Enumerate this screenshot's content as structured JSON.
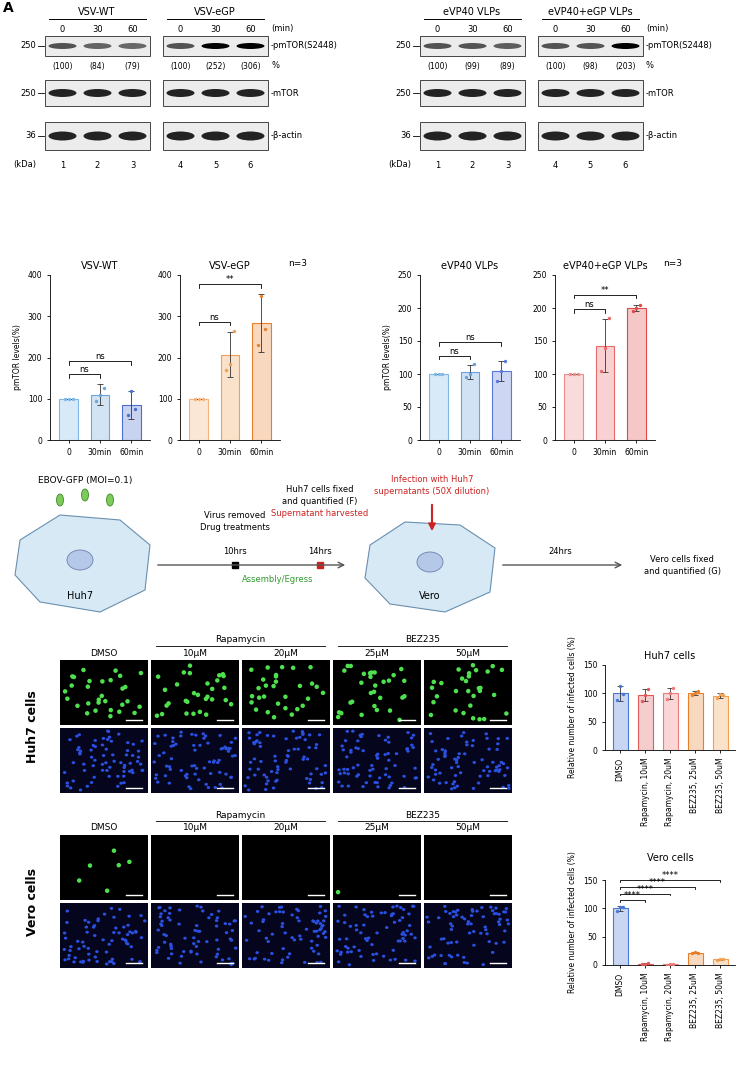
{
  "chart_data": [
    {
      "type": "bar",
      "title": "VSV-WT",
      "categories": [
        "0",
        "30min",
        "60min"
      ],
      "values": [
        100,
        110,
        85
      ],
      "errors": [
        0,
        25,
        35
      ],
      "points": [
        [
          100,
          100,
          100
        ],
        [
          95,
          110,
          125
        ],
        [
          60,
          120,
          75
        ]
      ],
      "colors": [
        "#7fb8e6",
        "#6aa6d9",
        "#4a6fd0"
      ],
      "ylabel": "pmTOR levels(%)",
      "ylim": [
        0,
        400
      ],
      "yticks": [
        0,
        100,
        200,
        300,
        400
      ],
      "significance": [
        {
          "pair": [
            0,
            1
          ],
          "label": "ns"
        },
        {
          "pair": [
            0,
            2
          ],
          "label": "ns"
        }
      ]
    },
    {
      "type": "bar",
      "title": "VSV-eGP",
      "categories": [
        "0",
        "30min",
        "60min"
      ],
      "values": [
        100,
        207,
        283
      ],
      "errors": [
        0,
        55,
        70
      ],
      "points": [
        [
          100,
          100,
          100
        ],
        [
          170,
          185,
          265
        ],
        [
          230,
          350,
          270
        ]
      ],
      "colors": [
        "#f2b27a",
        "#f0a050",
        "#e8802a"
      ],
      "annotation": "n=3",
      "ylim": [
        0,
        400
      ],
      "yticks": [
        0,
        100,
        200,
        300,
        400
      ],
      "significance": [
        {
          "pair": [
            0,
            1
          ],
          "label": "ns"
        },
        {
          "pair": [
            0,
            2
          ],
          "label": "**"
        }
      ]
    },
    {
      "type": "bar",
      "title": "eVP40 VLPs",
      "categories": [
        "0",
        "30min",
        "60min"
      ],
      "values": [
        100,
        103,
        105
      ],
      "errors": [
        0,
        10,
        15
      ],
      "points": [
        [
          100,
          100,
          100
        ],
        [
          95,
          100,
          115
        ],
        [
          90,
          105,
          120
        ]
      ],
      "colors": [
        "#7fb8e6",
        "#6a9fe0",
        "#5a78d8"
      ],
      "ylabel": "pmTOR levels(%)",
      "ylim": [
        0,
        250
      ],
      "yticks": [
        0,
        50,
        100,
        150,
        200,
        250
      ],
      "significance": [
        {
          "pair": [
            0,
            1
          ],
          "label": "ns"
        },
        {
          "pair": [
            0,
            2
          ],
          "label": "ns"
        }
      ]
    },
    {
      "type": "bar",
      "title": "eVP40+eGP VLPs",
      "categories": [
        "0",
        "30min",
        "60min"
      ],
      "values": [
        100,
        143,
        200
      ],
      "errors": [
        0,
        40,
        5
      ],
      "points": [
        [
          100,
          100,
          100
        ],
        [
          105,
          140,
          185
        ],
        [
          195,
          200,
          205
        ]
      ],
      "colors": [
        "#f08a8a",
        "#e86a6a",
        "#e04848"
      ],
      "annotation": "n=3",
      "ylim": [
        0,
        250
      ],
      "yticks": [
        0,
        50,
        100,
        150,
        200,
        250
      ],
      "significance": [
        {
          "pair": [
            0,
            1
          ],
          "label": "ns"
        },
        {
          "pair": [
            0,
            2
          ],
          "label": "**"
        }
      ]
    },
    {
      "type": "bar",
      "title": "Huh7 cells",
      "categories": [
        "DMSO",
        "Rapamycin, 10uM",
        "Rapamycin, 20uM",
        "BEZ235, 25uM",
        "BEZ235, 50uM"
      ],
      "values": [
        100,
        97,
        100,
        101,
        96
      ],
      "errors": [
        13,
        10,
        10,
        4,
        4
      ],
      "points": [
        [
          88,
          113,
          99
        ],
        [
          87,
          97,
          107
        ],
        [
          90,
          100,
          110
        ],
        [
          97,
          101,
          105
        ],
        [
          92,
          99,
          97
        ]
      ],
      "colors": [
        "#4a78d8",
        "#e05a5a",
        "#f07a7a",
        "#e8802a",
        "#f0a050"
      ],
      "ylabel": "Relative number of infected cells (%)",
      "ylim": [
        0,
        150
      ],
      "yticks": [
        0,
        50,
        100,
        150
      ],
      "significance": []
    },
    {
      "type": "bar",
      "title": "Vero cells",
      "categories": [
        "DMSO",
        "Rapamycin, 10uM",
        "Rapamycin, 20uM",
        "BEZ235, 25uM",
        "BEZ235, 50uM"
      ],
      "values": [
        100,
        2,
        1,
        22,
        10
      ],
      "errors": [
        5,
        1,
        1,
        1,
        1
      ],
      "points": [
        [
          95,
          103,
          102
        ],
        [
          1,
          2,
          3
        ],
        [
          0,
          1,
          2
        ],
        [
          21,
          23,
          22
        ],
        [
          9,
          11,
          10
        ]
      ],
      "colors": [
        "#4a78d8",
        "#e05a5a",
        "#f07a7a",
        "#e8802a",
        "#f0a050"
      ],
      "ylabel": "Relative number of infected cells (%)",
      "ylim": [
        0,
        150
      ],
      "yticks": [
        0,
        50,
        100,
        150
      ],
      "significance": [
        {
          "pair": [
            0,
            1
          ],
          "label": "****"
        },
        {
          "pair": [
            0,
            2
          ],
          "label": "****"
        },
        {
          "pair": [
            0,
            3
          ],
          "label": "****"
        },
        {
          "pair": [
            0,
            4
          ],
          "label": "****"
        }
      ]
    }
  ],
  "blots": [
    {
      "panel_label": "A",
      "unit_label": "(kDa)",
      "markers": [
        250,
        250,
        36
      ],
      "rows": [
        "-pmTOR(S2448)",
        "-mTOR",
        "-β-actin"
      ],
      "time_unit": "(min)",
      "percent_sign": "%",
      "groups": [
        {
          "name": "VSV-WT",
          "times": [
            0,
            30,
            60
          ],
          "percent": [
            100,
            84,
            79
          ],
          "percent_labels": [
            "(100)",
            "(84)",
            "(79)"
          ],
          "lanes": [
            1,
            2,
            3
          ]
        },
        {
          "name": "VSV-eGP",
          "times": [
            0,
            30,
            60
          ],
          "percent": [
            100,
            252,
            306
          ],
          "percent_labels": [
            "(100)",
            "(252)",
            "(306)"
          ],
          "lanes": [
            4,
            5,
            6
          ]
        }
      ]
    },
    {
      "unit_label": "(kDa)",
      "markers": [
        250,
        250,
        36
      ],
      "rows": [
        "-pmTOR(S2448)",
        "-mTOR",
        "-β-actin"
      ],
      "time_unit": "(min)",
      "percent_sign": "%",
      "groups": [
        {
          "name": "eVP40 VLPs",
          "times": [
            0,
            30,
            60
          ],
          "percent": [
            100,
            99,
            89
          ],
          "percent_labels": [
            "(100)",
            "(99)",
            "(89)"
          ],
          "lanes": [
            1,
            2,
            3
          ]
        },
        {
          "name": "eVP40+eGP VLPs",
          "times": [
            0,
            30,
            60
          ],
          "percent": [
            100,
            98,
            203
          ],
          "percent_labels": [
            "(100)",
            "(98)",
            "(203)"
          ],
          "lanes": [
            4,
            5,
            6
          ]
        }
      ]
    }
  ],
  "schematic": {
    "virus_label": "EBOV-GFP (MOI=0.1)",
    "cell1": "Huh7",
    "step1": [
      "Virus removed",
      "Drug treatments"
    ],
    "time1": "10hrs",
    "step2": [
      "Huh7 cells fixed",
      "and quantified (F)"
    ],
    "step2_red": "Supernatant harvested",
    "phase": "Assembly/Egress",
    "time2": "14hrs",
    "infection": [
      "Infection with Huh7",
      "supernatants (50X dilution)"
    ],
    "cell2": "Vero",
    "time3": "24hrs",
    "step3": [
      "Vero cells fixed",
      "and quantified (G)"
    ]
  },
  "micrographs": {
    "groups": [
      {
        "name": "DMSO",
        "doses": []
      },
      {
        "name": "Rapamycin",
        "doses": [
          "10μM",
          "20μM"
        ]
      },
      {
        "name": "BEZ235",
        "doses": [
          "25μM",
          "50μM"
        ]
      }
    ],
    "rows": [
      {
        "label": "Huh7 cells",
        "green_cells": [
          30,
          30,
          30,
          30,
          30
        ]
      },
      {
        "label": "Vero cells",
        "green_cells": [
          6,
          0,
          0,
          1,
          0
        ]
      }
    ]
  }
}
